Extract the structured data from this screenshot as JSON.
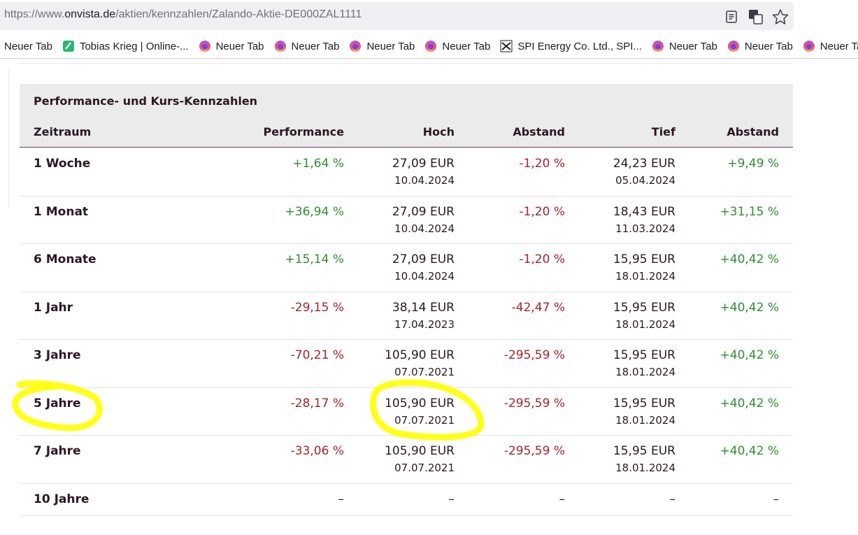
{
  "browser": {
    "url": [
      "https://www.",
      "onvista.de",
      "/aktien/kennzahlen/Zalando-Aktie-DE000ZAL1111"
    ],
    "bookmarks": [
      {
        "label": "Neuer Tab",
        "icon": "none"
      },
      {
        "label": "Tobias Krieg | Online-...",
        "icon": "green"
      },
      {
        "label": "Neuer Tab",
        "icon": "firefox"
      },
      {
        "label": "Neuer Tab",
        "icon": "firefox"
      },
      {
        "label": "Neuer Tab",
        "icon": "firefox"
      },
      {
        "label": "Neuer Tab",
        "icon": "firefox"
      },
      {
        "label": "SPI Energy Co. Ltd., SPI...",
        "icon": "spi"
      },
      {
        "label": "Neuer Tab",
        "icon": "firefox"
      },
      {
        "label": "Neuer Tab",
        "icon": "firefox"
      },
      {
        "label": "Neuer Tab",
        "icon": "firefox"
      }
    ]
  },
  "table": {
    "title": "Performance- und Kurs-Kennzahlen",
    "headers": [
      "Zeitraum",
      "Performance",
      "Hoch",
      "Abstand",
      "Tief",
      "Abstand"
    ],
    "rows": [
      {
        "period": "1 Woche",
        "performance": "+1,64 %",
        "high": {
          "price": "27,09 EUR",
          "date": "10.04.2024"
        },
        "high_distance": "-1,20 %",
        "low": {
          "price": "24,23 EUR",
          "date": "05.04.2024"
        },
        "low_distance": "+9,49 %"
      },
      {
        "period": "1 Monat",
        "performance": "+36,94 %",
        "high": {
          "price": "27,09 EUR",
          "date": "10.04.2024"
        },
        "high_distance": "-1,20 %",
        "low": {
          "price": "18,43 EUR",
          "date": "11.03.2024"
        },
        "low_distance": "+31,15 %"
      },
      {
        "period": "6 Monate",
        "performance": "+15,14 %",
        "high": {
          "price": "27,09 EUR",
          "date": "10.04.2024"
        },
        "high_distance": "-1,20 %",
        "low": {
          "price": "15,95 EUR",
          "date": "18.01.2024"
        },
        "low_distance": "+40,42 %"
      },
      {
        "period": "1 Jahr",
        "performance": "-29,15 %",
        "high": {
          "price": "38,14 EUR",
          "date": "17.04.2023"
        },
        "high_distance": "-42,47 %",
        "low": {
          "price": "15,95 EUR",
          "date": "18.01.2024"
        },
        "low_distance": "+40,42 %"
      },
      {
        "period": "3 Jahre",
        "performance": "-70,21 %",
        "high": {
          "price": "105,90 EUR",
          "date": "07.07.2021"
        },
        "high_distance": "-295,59 %",
        "low": {
          "price": "15,95 EUR",
          "date": "18.01.2024"
        },
        "low_distance": "+40,42 %"
      },
      {
        "period": "5 Jahre",
        "performance": "-28,17 %",
        "high": {
          "price": "105,90 EUR",
          "date": "07.07.2021"
        },
        "high_distance": "-295,59 %",
        "low": {
          "price": "15,95 EUR",
          "date": "18.01.2024"
        },
        "low_distance": "+40,42 %"
      },
      {
        "period": "7 Jahre",
        "performance": "-33,06 %",
        "high": {
          "price": "105,90 EUR",
          "date": "07.07.2021"
        },
        "high_distance": "-295,59 %",
        "low": {
          "price": "15,95 EUR",
          "date": "18.01.2024"
        },
        "low_distance": "+40,42 %"
      },
      {
        "period": "10 Jahre",
        "performance": "–",
        "high": {
          "price": "–"
        },
        "high_distance": "–",
        "low": {
          "price": "–"
        },
        "low_distance": "–"
      }
    ]
  }
}
